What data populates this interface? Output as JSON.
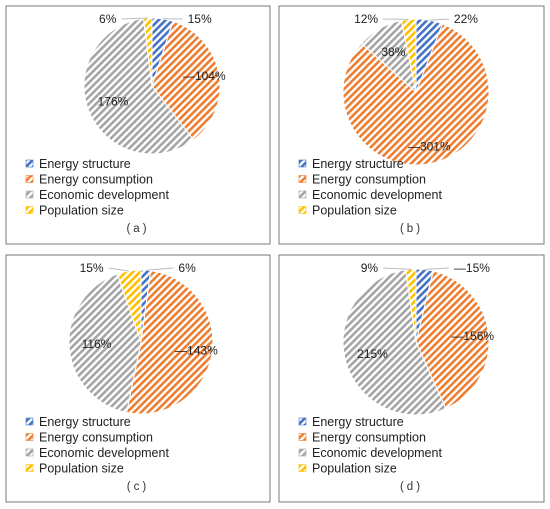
{
  "colors": {
    "energy_structure": "#4472c4",
    "energy_consumption": "#ed7d31",
    "economic_development": "#a5a5a5",
    "population_size": "#ffc000"
  },
  "chart_data": [
    {
      "type": "pie",
      "panel": "a",
      "caption": "(a)",
      "legend_position": "bottom-left",
      "hatched": true,
      "categories": [
        "Energy structure",
        "Energy consumption",
        "Economic development",
        "Population size"
      ],
      "values": [
        15,
        104,
        176,
        6
      ],
      "labels": [
        "15%",
        "—104%",
        "176%",
        "6%"
      ]
    },
    {
      "type": "pie",
      "panel": "b",
      "caption": "(b)",
      "legend_position": "bottom-left",
      "hatched": true,
      "categories": [
        "Energy structure",
        "Energy consumption",
        "Economic development",
        "Population size"
      ],
      "values": [
        22,
        301,
        38,
        12
      ],
      "labels": [
        "22%",
        "—301%",
        "38%",
        "12%"
      ]
    },
    {
      "type": "pie",
      "panel": "c",
      "caption": "(c)",
      "legend_position": "bottom-left",
      "hatched": true,
      "categories": [
        "Energy structure",
        "Energy consumption",
        "Economic development",
        "Population size"
      ],
      "values": [
        6,
        143,
        116,
        15
      ],
      "labels": [
        "6%",
        "—143%",
        "116%",
        "15%"
      ]
    },
    {
      "type": "pie",
      "panel": "d",
      "caption": "(d)",
      "legend_position": "bottom-left",
      "hatched": true,
      "categories": [
        "Energy structure",
        "Energy consumption",
        "Economic development",
        "Population size"
      ],
      "values": [
        15,
        156,
        215,
        9
      ],
      "labels": [
        "—15%",
        "—156%",
        "215%",
        "9%"
      ]
    }
  ]
}
